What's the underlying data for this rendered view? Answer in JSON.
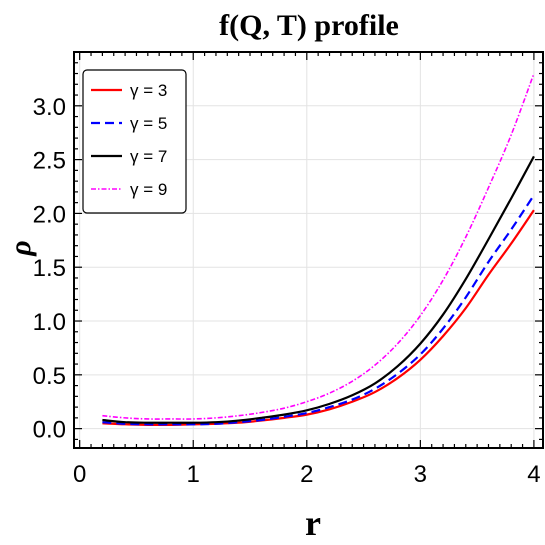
{
  "chart_data": {
    "type": "line",
    "title": "f(Q, T) profile",
    "xlabel": "r",
    "ylabel": "ρ",
    "xlim": [
      -0.05,
      4.08
    ],
    "ylim": [
      -0.18,
      3.5
    ],
    "x_ticks": [
      0,
      1,
      2,
      3,
      4
    ],
    "x_tick_labels": [
      "0",
      "1",
      "2",
      "3",
      "4"
    ],
    "y_ticks": [
      0.0,
      0.5,
      1.0,
      1.5,
      2.0,
      2.5,
      3.0
    ],
    "y_tick_labels": [
      "0.0",
      "0.5",
      "1.0",
      "1.5",
      "2.0",
      "2.5",
      "3.0"
    ],
    "grid": true,
    "legend_position": "top-left",
    "series": [
      {
        "name": "γ = 3",
        "color": "#ff0000",
        "dash": "solid",
        "x": [
          0.2,
          0.4,
          0.6,
          0.8,
          1.0,
          1.2,
          1.4,
          1.6,
          1.8,
          2.0,
          2.2,
          2.4,
          2.6,
          2.8,
          3.0,
          3.2,
          3.4,
          3.6,
          3.8,
          4.0
        ],
        "y": [
          0.05,
          0.04,
          0.035,
          0.035,
          0.04,
          0.045,
          0.055,
          0.075,
          0.1,
          0.13,
          0.18,
          0.25,
          0.34,
          0.47,
          0.64,
          0.86,
          1.12,
          1.43,
          1.72,
          2.03
        ]
      },
      {
        "name": "γ = 5",
        "color": "#0000ff",
        "dash": "dashed",
        "x": [
          0.2,
          0.4,
          0.6,
          0.8,
          1.0,
          1.2,
          1.4,
          1.6,
          1.8,
          2.0,
          2.2,
          2.4,
          2.6,
          2.8,
          3.0,
          3.2,
          3.4,
          3.6,
          3.8,
          4.0
        ],
        "y": [
          0.06,
          0.045,
          0.04,
          0.04,
          0.04,
          0.045,
          0.06,
          0.08,
          0.11,
          0.145,
          0.2,
          0.27,
          0.37,
          0.51,
          0.69,
          0.93,
          1.22,
          1.55,
          1.85,
          2.17
        ]
      },
      {
        "name": "γ = 7",
        "color": "#000000",
        "dash": "solid",
        "x": [
          0.2,
          0.4,
          0.6,
          0.8,
          1.0,
          1.2,
          1.4,
          1.6,
          1.8,
          2.0,
          2.2,
          2.4,
          2.6,
          2.8,
          3.0,
          3.2,
          3.4,
          3.6,
          3.8,
          4.0
        ],
        "y": [
          0.08,
          0.06,
          0.055,
          0.055,
          0.055,
          0.06,
          0.075,
          0.1,
          0.13,
          0.17,
          0.23,
          0.31,
          0.42,
          0.58,
          0.79,
          1.06,
          1.39,
          1.76,
          2.14,
          2.53
        ]
      },
      {
        "name": "γ = 9",
        "color": "#ff00ff",
        "dash": "dashdot",
        "x": [
          0.2,
          0.4,
          0.6,
          0.8,
          1.0,
          1.2,
          1.4,
          1.6,
          1.8,
          2.0,
          2.2,
          2.4,
          2.6,
          2.8,
          3.0,
          3.2,
          3.4,
          3.6,
          3.8,
          4.0
        ],
        "y": [
          0.12,
          0.1,
          0.09,
          0.09,
          0.09,
          0.1,
          0.12,
          0.15,
          0.19,
          0.25,
          0.33,
          0.44,
          0.59,
          0.79,
          1.05,
          1.38,
          1.78,
          2.24,
          2.73,
          3.3
        ]
      }
    ]
  }
}
